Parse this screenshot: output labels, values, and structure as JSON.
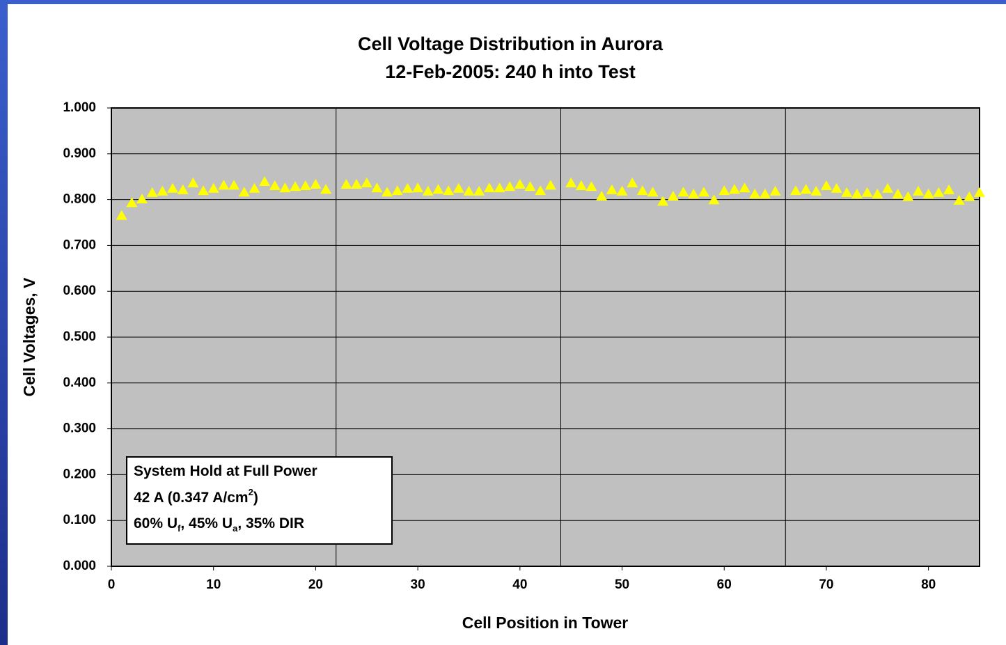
{
  "chart_data": {
    "type": "scatter",
    "title": "Cell Voltage Distribution in Aurora",
    "subtitle": "12-Feb-2005: 240 h into Test",
    "x_label": "Cell Position in Tower",
    "y_label": "Cell Voltages, V",
    "xlim": [
      0,
      85
    ],
    "xticks": [
      0,
      10,
      20,
      30,
      40,
      50,
      60,
      70,
      80
    ],
    "ylim": [
      0,
      1
    ],
    "yticks": [
      {
        "value": 0,
        "label": "0.000"
      },
      {
        "value": 0.1,
        "label": "0.100"
      },
      {
        "value": 0.2,
        "label": "0.200"
      },
      {
        "value": 0.3,
        "label": "0.300"
      },
      {
        "value": 0.4,
        "label": "0.400"
      },
      {
        "value": 0.5,
        "label": "0.500"
      },
      {
        "value": 0.6,
        "label": "0.600"
      },
      {
        "value": 0.7,
        "label": "0.700"
      },
      {
        "value": 0.8,
        "label": "0.800"
      },
      {
        "value": 0.9,
        "label": "0.900"
      },
      {
        "value": 1,
        "label": "1.000"
      }
    ],
    "grid": true,
    "vertical_lines": [
      22,
      44,
      66
    ],
    "plot_color": "#c0c0c0",
    "series": [
      {
        "name": "Cell Voltage",
        "color": "#ffff00",
        "marker": "triangle",
        "x": [
          1,
          2,
          3,
          4,
          5,
          6,
          7,
          8,
          9,
          10,
          11,
          12,
          13,
          14,
          15,
          16,
          17,
          18,
          19,
          20,
          21,
          23,
          24,
          25,
          26,
          27,
          28,
          29,
          30,
          31,
          32,
          33,
          34,
          35,
          36,
          37,
          38,
          39,
          40,
          41,
          42,
          43,
          45,
          46,
          47,
          48,
          49,
          50,
          51,
          52,
          53,
          54,
          55,
          56,
          57,
          58,
          59,
          60,
          61,
          62,
          63,
          64,
          65,
          67,
          68,
          69,
          70,
          71,
          72,
          73,
          74,
          75,
          76,
          77,
          78,
          79,
          80,
          81,
          82,
          83,
          84,
          85
        ],
        "values": [
          0.765,
          0.793,
          0.801,
          0.815,
          0.818,
          0.824,
          0.821,
          0.836,
          0.819,
          0.824,
          0.831,
          0.831,
          0.816,
          0.824,
          0.839,
          0.83,
          0.825,
          0.828,
          0.83,
          0.833,
          0.822,
          0.833,
          0.833,
          0.836,
          0.825,
          0.816,
          0.819,
          0.824,
          0.825,
          0.818,
          0.822,
          0.819,
          0.824,
          0.818,
          0.818,
          0.825,
          0.825,
          0.828,
          0.833,
          0.828,
          0.819,
          0.831,
          0.836,
          0.83,
          0.828,
          0.807,
          0.821,
          0.818,
          0.836,
          0.819,
          0.816,
          0.796,
          0.807,
          0.816,
          0.812,
          0.816,
          0.799,
          0.819,
          0.822,
          0.825,
          0.812,
          0.812,
          0.818,
          0.819,
          0.822,
          0.818,
          0.83,
          0.824,
          0.815,
          0.812,
          0.815,
          0.812,
          0.824,
          0.812,
          0.806,
          0.818,
          0.812,
          0.815,
          0.821,
          0.798,
          0.806,
          0.815
        ]
      }
    ],
    "annotation": {
      "lines": [
        [
          {
            "text": "System Hold at Full Power"
          }
        ],
        [
          {
            "text": "42 A (0.347 A/cm"
          },
          {
            "text": "2",
            "shift": "super"
          },
          {
            "text": ")"
          }
        ],
        [
          {
            "text": "60% U"
          },
          {
            "text": "f",
            "shift": "sub"
          },
          {
            "text": ", 45% U"
          },
          {
            "text": "a",
            "shift": "sub"
          },
          {
            "text": ", 35% DIR"
          }
        ]
      ]
    }
  }
}
